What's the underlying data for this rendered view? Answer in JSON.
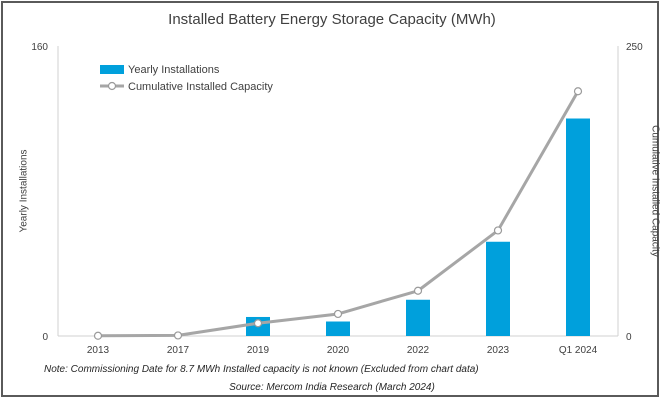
{
  "chart_data": {
    "type": "bar",
    "title": "Installed Battery Energy Storage Capacity (MWh)",
    "categories": [
      "2013",
      "2017",
      "2019",
      "2020",
      "2022",
      "2023",
      "Q1 2024"
    ],
    "series": [
      {
        "name": "Yearly Installations",
        "type": "bar",
        "axis": "left",
        "color": "#00a0dc",
        "values": [
          0,
          0,
          10.5,
          8,
          20,
          52,
          120
        ]
      },
      {
        "name": "Cumulative Installed Capacity",
        "type": "line",
        "axis": "right",
        "color": "#a6a6a6",
        "values": [
          0.2,
          0.5,
          11,
          19,
          39,
          91,
          211
        ]
      }
    ],
    "y_left": {
      "label": "Yearly Installations",
      "range": [
        0,
        160
      ],
      "ticks": [
        "0",
        "160"
      ]
    },
    "y_right": {
      "label": "Cumulative Installed Capacity",
      "range": [
        0,
        250
      ],
      "ticks": [
        "0",
        "250"
      ]
    },
    "legend": "top-left",
    "grid": false,
    "note": "Note: Commissioning Date for 8.7 MWh Installed capacity is not known (Excluded from chart data)",
    "source": "Source: Mercom India Research (March 2024)"
  }
}
